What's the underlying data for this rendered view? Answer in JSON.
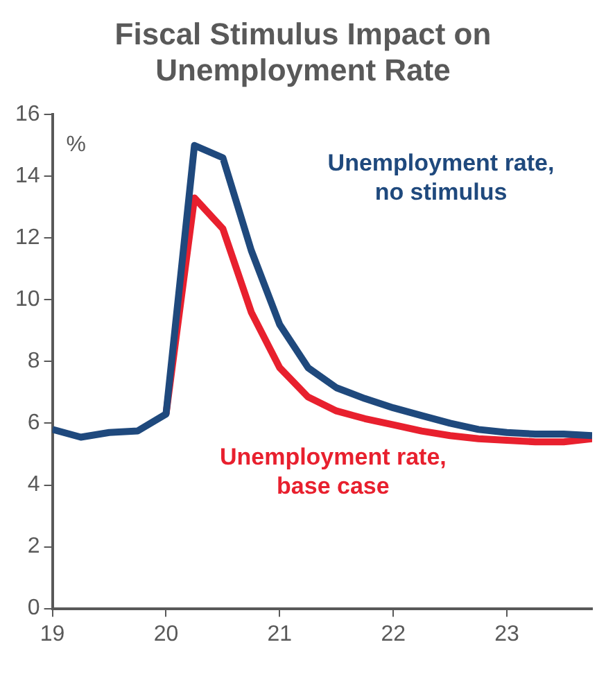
{
  "chart_data": {
    "type": "line",
    "title": "Fiscal Stimulus Impact on Unemployment Rate",
    "ylabel": "%",
    "x": [
      19,
      19.25,
      19.5,
      19.75,
      20,
      20.25,
      20.5,
      20.75,
      21,
      21.25,
      21.5,
      21.75,
      22,
      22.25,
      22.5,
      22.75,
      23,
      23.25,
      23.5,
      23.75
    ],
    "series": [
      {
        "name": "Unemployment rate, no stimulus",
        "color": "#1f497d",
        "values": [
          5.8,
          5.55,
          5.7,
          5.75,
          6.3,
          15.0,
          14.6,
          11.6,
          9.2,
          7.8,
          7.15,
          6.8,
          6.5,
          6.25,
          6.0,
          5.8,
          5.7,
          5.65,
          5.65,
          5.6
        ]
      },
      {
        "name": "Unemployment rate, base case",
        "color": "#e8202e",
        "values": [
          null,
          null,
          null,
          null,
          6.3,
          13.3,
          12.3,
          9.6,
          7.8,
          6.85,
          6.4,
          6.15,
          5.95,
          5.75,
          5.6,
          5.5,
          5.45,
          5.4,
          5.4,
          5.5
        ]
      }
    ],
    "xlim": [
      19,
      23.75
    ],
    "xticks": [
      19,
      20,
      21,
      22,
      23
    ],
    "ylim": [
      0,
      16
    ],
    "yticks": [
      0,
      2,
      4,
      6,
      8,
      10,
      12,
      14,
      16
    ],
    "grid": false,
    "legend": false,
    "marker": "none",
    "line_style": "solid"
  }
}
